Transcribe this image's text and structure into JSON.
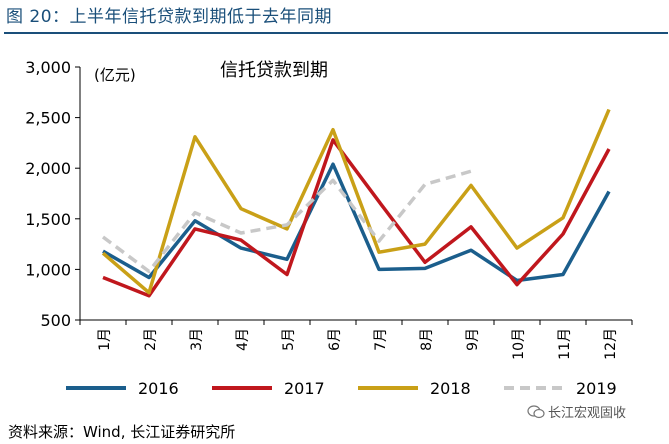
{
  "figure_title": "图 20：上半年信托贷款到期低于去年同期",
  "source_note": "资料来源：Wind, 长江证券研究所",
  "watermark": "长江宏观固收",
  "colors": {
    "title_blue": "#1a4f7a",
    "s2016": "#1b5e8c",
    "s2017": "#c0171d",
    "s2018": "#c9a017",
    "s2019": "#c8c8c8"
  },
  "chart_data": {
    "type": "line",
    "title": "信托贷款到期",
    "unit_label": "(亿元)",
    "categories": [
      "1月",
      "2月",
      "3月",
      "4月",
      "5月",
      "6月",
      "7月",
      "8月",
      "9月",
      "10月",
      "11月",
      "12月"
    ],
    "ylim": [
      500,
      3000
    ],
    "yticks": [
      500,
      1000,
      1500,
      2000,
      2500,
      3000
    ],
    "ytick_labels": [
      "500",
      "1,000",
      "1,500",
      "2,000",
      "2,500",
      "3,000"
    ],
    "grid": false,
    "legend_position": "bottom",
    "series": [
      {
        "name": "2016",
        "color": "#1b5e8c",
        "dashed": false,
        "values": [
          1180,
          920,
          1480,
          1210,
          1100,
          2040,
          1000,
          1010,
          1190,
          890,
          950,
          1770
        ]
      },
      {
        "name": "2017",
        "color": "#c0171d",
        "dashed": false,
        "values": [
          920,
          740,
          1400,
          1290,
          950,
          2280,
          1670,
          1070,
          1420,
          850,
          1350,
          2190
        ]
      },
      {
        "name": "2018",
        "color": "#c9a017",
        "dashed": false,
        "values": [
          1160,
          770,
          2310,
          1600,
          1400,
          2380,
          1170,
          1250,
          1830,
          1210,
          1510,
          2580
        ]
      },
      {
        "name": "2019",
        "color": "#c8c8c8",
        "dashed": true,
        "values": [
          1320,
          980,
          1560,
          1360,
          1440,
          1880,
          1280,
          1840,
          1970,
          null,
          null,
          null
        ]
      }
    ]
  }
}
